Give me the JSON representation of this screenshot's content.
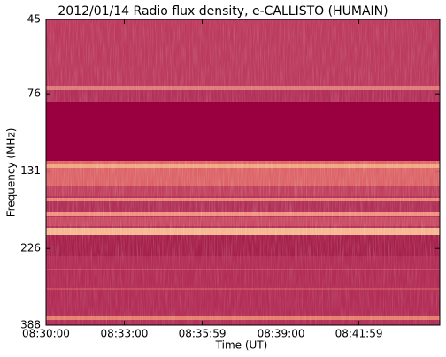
{
  "chart_data": {
    "type": "spectrogram",
    "title": "2012/01/14  Radio flux density, e-CALLISTO (HUMAIN)",
    "xlabel": "Time (UT)",
    "ylabel": "Frequency (MHz)",
    "xlim": [
      "08:30:00",
      "08:45:05"
    ],
    "xticks": [
      "08:30:00",
      "08:33:00",
      "08:35:59",
      "08:39:00",
      "08:41:59"
    ],
    "ylim": [
      45,
      388
    ],
    "yticks": [
      45,
      76,
      131,
      226,
      388
    ],
    "yscale": "log",
    "yinverted": true
  }
}
